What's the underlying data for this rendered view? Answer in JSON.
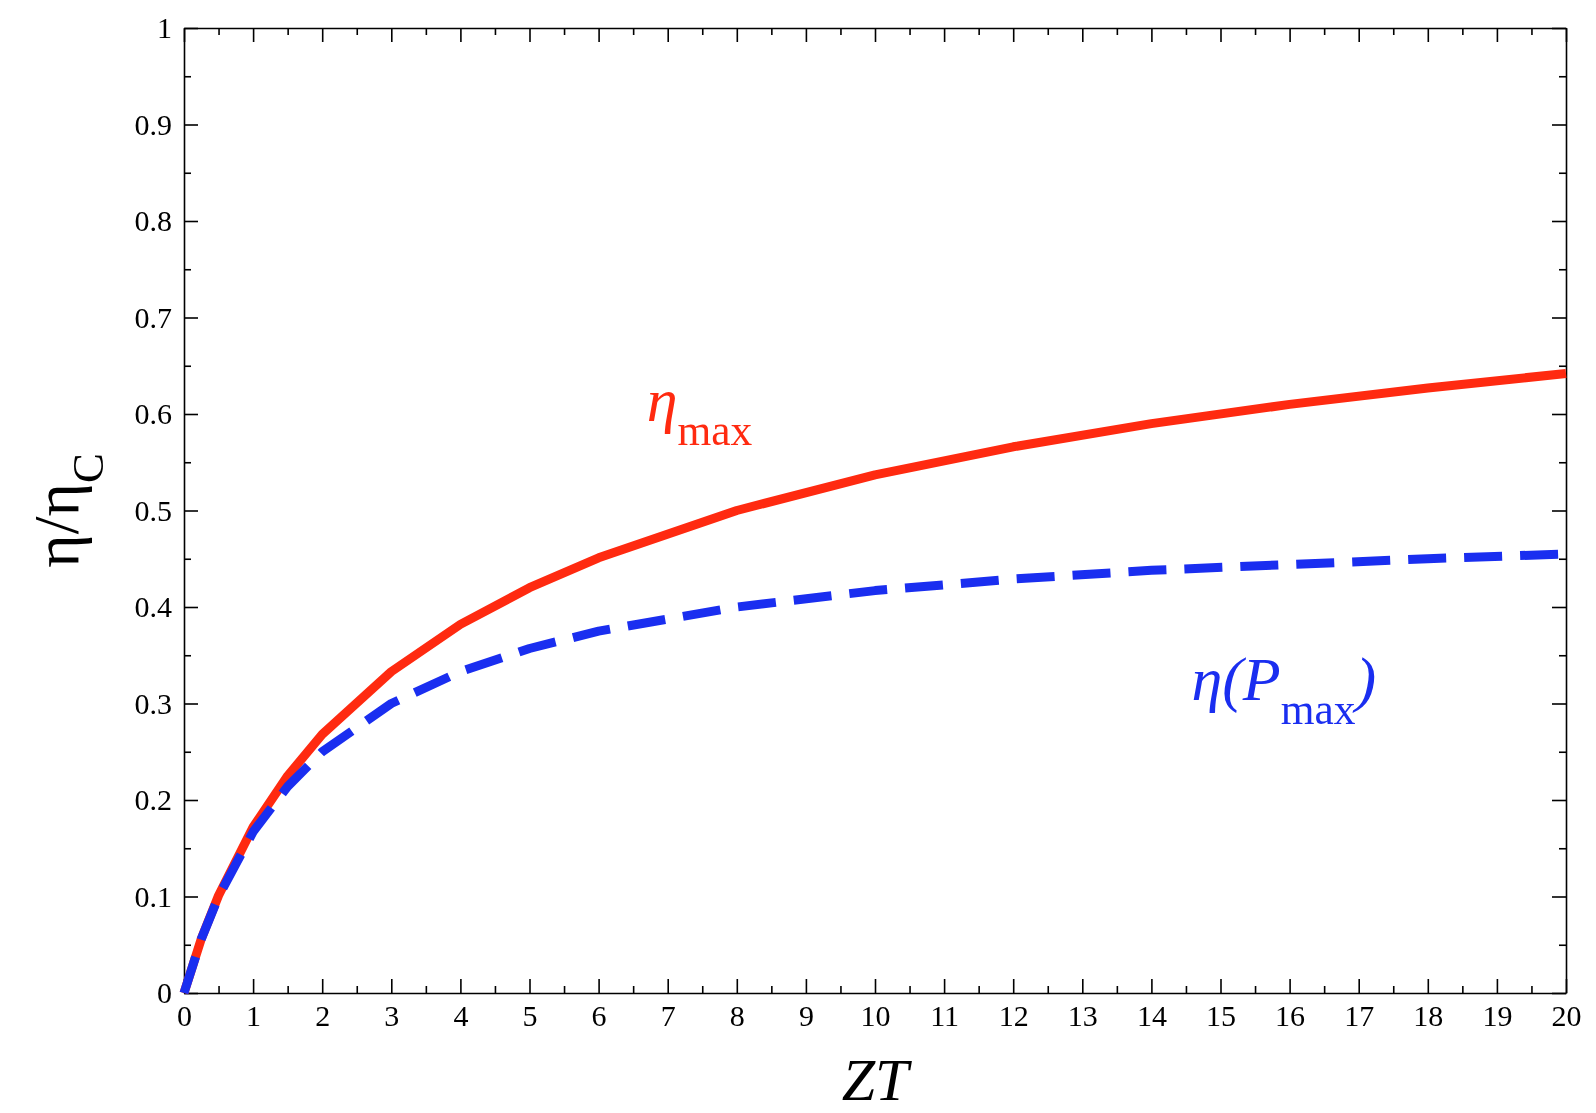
{
  "chart_data": {
    "type": "line",
    "xlabel": "ZT",
    "ylabel": "η/η$_{C}$",
    "x": [
      0,
      0.25,
      0.5,
      1,
      1.5,
      2,
      3,
      4,
      5,
      6,
      8,
      10,
      12,
      14,
      16,
      18,
      20
    ],
    "series": [
      {
        "name": "η$_{max}$",
        "color": "#ff2a10",
        "line_style": "solid",
        "values": [
          0,
          0.056,
          0.101,
          0.172,
          0.225,
          0.268,
          0.333,
          0.382,
          0.42,
          0.451,
          0.5,
          0.537,
          0.566,
          0.59,
          0.61,
          0.627,
          0.642
        ]
      },
      {
        "name": "η(P$_{max}$)",
        "color": "#1a2ef0",
        "line_style": "dashed",
        "values": [
          0,
          0.056,
          0.1,
          0.167,
          0.214,
          0.25,
          0.3,
          0.333,
          0.357,
          0.375,
          0.4,
          0.417,
          0.429,
          0.438,
          0.444,
          0.45,
          0.455
        ]
      }
    ],
    "xlim": [
      0,
      20
    ],
    "xticks": [
      0,
      {
        "value": 0.5,
        "label": null
      },
      1,
      {
        "value": 1.5,
        "label": null
      },
      2,
      {
        "value": 2.5,
        "label": null
      },
      3,
      {
        "value": 3.5,
        "label": null
      },
      4,
      {
        "value": 4.5,
        "label": null
      },
      5,
      {
        "value": 5.5,
        "label": null
      },
      6,
      {
        "value": 6.5,
        "label": null
      },
      7,
      {
        "value": 7.5,
        "label": null
      },
      8,
      {
        "value": 8.5,
        "label": null
      },
      9,
      {
        "value": 9.5,
        "label": null
      },
      10,
      {
        "value": 10.5,
        "label": null
      },
      11,
      {
        "value": 11.5,
        "label": null
      },
      12,
      {
        "value": 12.5,
        "label": null
      },
      13,
      {
        "value": 13.5,
        "label": null
      },
      14,
      {
        "value": 14.5,
        "label": null
      },
      15,
      {
        "value": 15.5,
        "label": null
      },
      16,
      {
        "value": 16.5,
        "label": null
      },
      17,
      {
        "value": 17.5,
        "label": null
      },
      18,
      {
        "value": 18.5,
        "label": null
      },
      19,
      {
        "value": 19.5,
        "label": null
      },
      20
    ],
    "ylim": [
      0,
      1
    ],
    "yticks": [
      0,
      {
        "value": 0.05,
        "label": null
      },
      0.1,
      {
        "value": 0.15,
        "label": null
      },
      0.2,
      {
        "value": 0.25,
        "label": null
      },
      0.3,
      {
        "value": 0.35,
        "label": null
      },
      0.4,
      {
        "value": 0.45,
        "label": null
      },
      0.5,
      {
        "value": 0.55,
        "label": null
      },
      0.6,
      {
        "value": 0.65,
        "label": null
      },
      0.7,
      {
        "value": 0.75,
        "label": null
      },
      0.8,
      {
        "value": 0.85,
        "label": null
      },
      0.9,
      {
        "value": 0.95,
        "label": null
      },
      1
    ],
    "legend": false,
    "grid": false
  }
}
